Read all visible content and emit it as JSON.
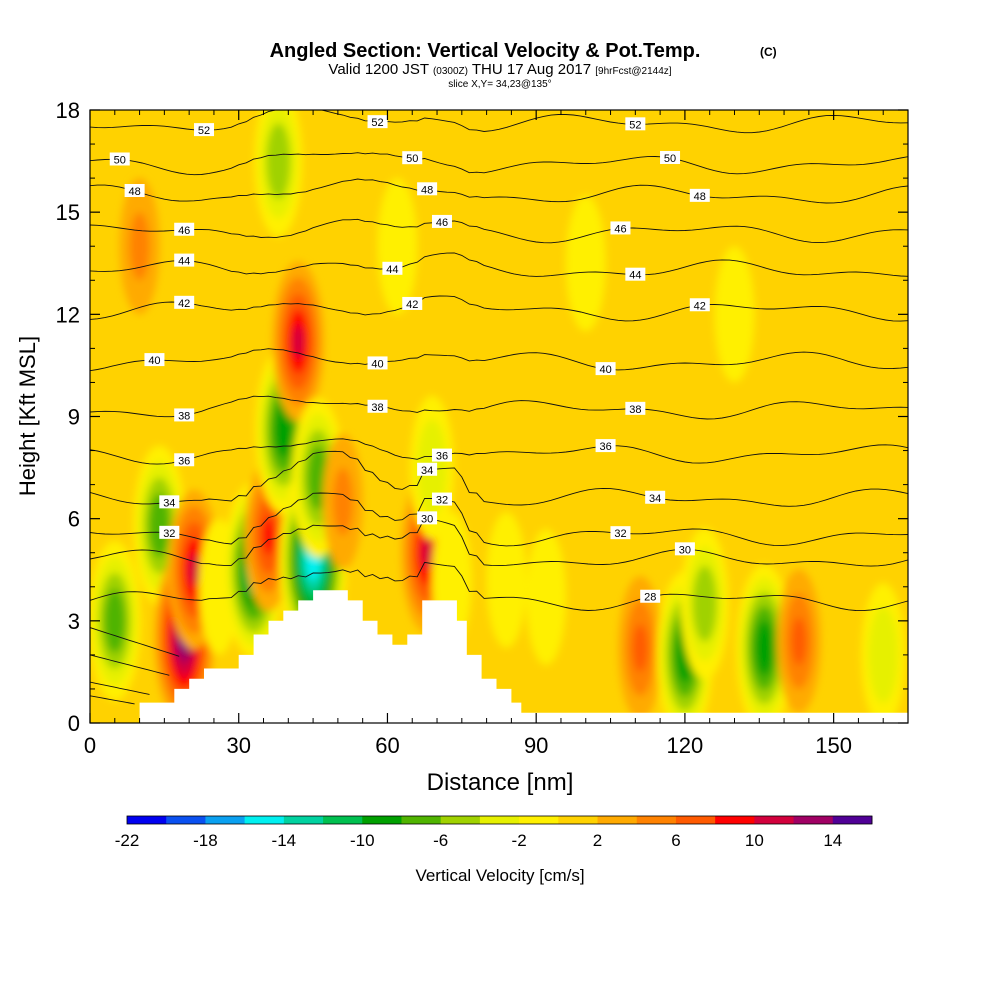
{
  "title": {
    "main": "Angled Section: Vertical Velocity & Pot.Temp.",
    "main_suffix": "(C)",
    "valid_a": "Valid 1200 JST",
    "valid_b": "(0300Z)",
    "valid_c": "THU 17 Aug 2017",
    "valid_d": "[9hrFcst@2144z]",
    "slice": "slice X,Y= 34,23@135°"
  },
  "chart_data": {
    "type": "heatmap",
    "xlabel": "Distance [nm]",
    "ylabel": "Height [Kft MSL]",
    "xlim": [
      0,
      165
    ],
    "ylim": [
      0,
      18
    ],
    "x_ticks": [
      0,
      30,
      60,
      90,
      120,
      150
    ],
    "y_ticks": [
      0,
      3,
      6,
      9,
      12,
      15,
      18
    ],
    "colorbar": {
      "label": "Vertical Velocity [cm/s]",
      "tick_labels": [
        "-22",
        "-18",
        "-14",
        "-10",
        "-6",
        "-2",
        "2",
        "6",
        "10",
        "14"
      ],
      "bounds": [
        -22,
        16
      ],
      "bin_width": 2,
      "colors": [
        "#0000f0",
        "#0a50f0",
        "#0aa0f0",
        "#00f0f0",
        "#00d2a0",
        "#00c050",
        "#00a000",
        "#50b400",
        "#a0d200",
        "#e6f000",
        "#fff000",
        "#ffd200",
        "#ffaa00",
        "#ff8200",
        "#ff5a00",
        "#ff0000",
        "#d2003c",
        "#a00064",
        "#500096"
      ]
    },
    "background_value": 1,
    "velocity_features": [
      {
        "x": 5,
        "y": 3.0,
        "value": -8
      },
      {
        "x": 14,
        "y": 5.8,
        "value": -8
      },
      {
        "x": 19,
        "y": 2.5,
        "value": 14
      },
      {
        "x": 21,
        "y": 4.5,
        "value": 10
      },
      {
        "x": 26,
        "y": 4.0,
        "value": -2
      },
      {
        "x": 33,
        "y": 4.5,
        "value": -12
      },
      {
        "x": 36,
        "y": 5.5,
        "value": 8
      },
      {
        "x": 39,
        "y": 8.6,
        "value": -10
      },
      {
        "x": 38,
        "y": 16.5,
        "value": -6
      },
      {
        "x": 42,
        "y": 11.2,
        "value": 10
      },
      {
        "x": 45,
        "y": 4.8,
        "value": -16
      },
      {
        "x": 46,
        "y": 7.2,
        "value": -8
      },
      {
        "x": 51,
        "y": 6.5,
        "value": 4
      },
      {
        "x": 68,
        "y": 5.0,
        "value": 10
      },
      {
        "x": 69,
        "y": 7.5,
        "value": -4
      },
      {
        "x": 73,
        "y": 4.2,
        "value": -2
      },
      {
        "x": 84,
        "y": 4.2,
        "value": -2
      },
      {
        "x": 92,
        "y": 3.7,
        "value": -2
      },
      {
        "x": 111,
        "y": 2.2,
        "value": 6
      },
      {
        "x": 120,
        "y": 2.0,
        "value": -10
      },
      {
        "x": 124,
        "y": 3.5,
        "value": -6
      },
      {
        "x": 136,
        "y": 2.2,
        "value": -10
      },
      {
        "x": 143,
        "y": 2.4,
        "value": 6
      },
      {
        "x": 160,
        "y": 2.0,
        "value": -4
      },
      {
        "x": 62,
        "y": 14.0,
        "value": -2
      },
      {
        "x": 100,
        "y": 13.5,
        "value": -2
      },
      {
        "x": 130,
        "y": 12.0,
        "value": -2
      },
      {
        "x": 10,
        "y": 14.0,
        "value": 4
      }
    ],
    "terrain": [
      [
        0,
        0
      ],
      [
        10,
        0
      ],
      [
        10,
        0.6
      ],
      [
        17,
        0.6
      ],
      [
        17,
        1.0
      ],
      [
        20,
        1.0
      ],
      [
        20,
        1.3
      ],
      [
        23,
        1.3
      ],
      [
        23,
        1.6
      ],
      [
        30,
        1.6
      ],
      [
        30,
        2.0
      ],
      [
        33,
        2.0
      ],
      [
        33,
        2.6
      ],
      [
        36,
        2.6
      ],
      [
        36,
        3.0
      ],
      [
        39,
        3.0
      ],
      [
        39,
        3.3
      ],
      [
        42,
        3.3
      ],
      [
        42,
        3.6
      ],
      [
        45,
        3.6
      ],
      [
        45,
        3.9
      ],
      [
        52,
        3.9
      ],
      [
        52,
        3.6
      ],
      [
        55,
        3.6
      ],
      [
        55,
        3.0
      ],
      [
        58,
        3.0
      ],
      [
        58,
        2.6
      ],
      [
        61,
        2.6
      ],
      [
        61,
        2.3
      ],
      [
        64,
        2.3
      ],
      [
        64,
        2.6
      ],
      [
        67,
        2.6
      ],
      [
        67,
        3.6
      ],
      [
        74,
        3.6
      ],
      [
        74,
        3.0
      ],
      [
        76,
        3.0
      ],
      [
        76,
        2.0
      ],
      [
        79,
        2.0
      ],
      [
        79,
        1.3
      ],
      [
        82,
        1.3
      ],
      [
        82,
        1.0
      ],
      [
        85,
        1.0
      ],
      [
        85,
        0.6
      ],
      [
        87,
        0.6
      ],
      [
        87,
        0.3
      ],
      [
        165,
        0.3
      ],
      [
        165,
        0
      ]
    ],
    "isentropes": [
      {
        "value": 28,
        "label": "28",
        "y": 3.6,
        "label_xs": [
          113
        ]
      },
      {
        "value": 30,
        "label": "30",
        "y": 4.8,
        "label_xs": [
          68,
          120
        ]
      },
      {
        "value": 32,
        "label": "32",
        "y": 5.5,
        "label_xs": [
          16,
          71,
          107
        ]
      },
      {
        "value": 34,
        "label": "34",
        "y": 6.6,
        "label_xs": [
          16,
          68,
          114
        ]
      },
      {
        "value": 36,
        "label": "36",
        "y": 7.9,
        "label_xs": [
          19,
          71,
          104
        ]
      },
      {
        "value": 38,
        "label": "38",
        "y": 9.2,
        "label_xs": [
          19,
          58,
          110
        ]
      },
      {
        "value": 40,
        "label": "40",
        "y": 10.6,
        "label_xs": [
          13,
          58,
          104
        ]
      },
      {
        "value": 42,
        "label": "42",
        "y": 12.1,
        "label_xs": [
          19,
          65,
          123
        ]
      },
      {
        "value": 44,
        "label": "44",
        "y": 13.3,
        "label_xs": [
          19,
          61,
          110
        ]
      },
      {
        "value": 46,
        "label": "46",
        "y": 14.4,
        "label_xs": [
          19,
          71,
          107
        ]
      },
      {
        "value": 48,
        "label": "48",
        "y": 15.5,
        "label_xs": [
          9,
          68,
          123
        ]
      },
      {
        "value": 50,
        "label": "50",
        "y": 16.4,
        "label_xs": [
          6,
          65,
          117
        ]
      },
      {
        "value": 52,
        "label": "52",
        "y": 17.6,
        "label_xs": [
          23,
          58,
          110
        ]
      }
    ],
    "low_level_contours": [
      {
        "y": 2.8,
        "x_start": 0,
        "x_end": 18
      },
      {
        "y": 2.0,
        "x_start": 0,
        "x_end": 16
      },
      {
        "y": 1.2,
        "x_start": 0,
        "x_end": 12
      },
      {
        "y": 0.8,
        "x_start": 0,
        "x_end": 9
      }
    ]
  }
}
